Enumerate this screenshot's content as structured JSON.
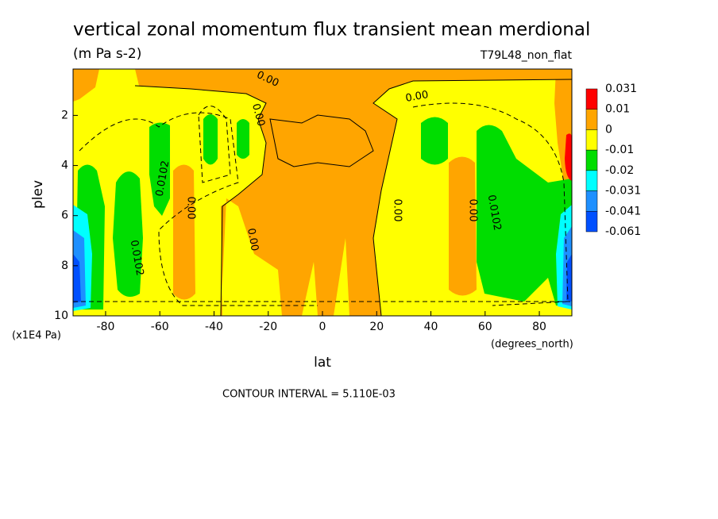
{
  "chart_data": {
    "type": "contour",
    "title": "vertical zonal momentum flux transient mean merdional",
    "subtitle": "(m Pa s-2)",
    "annotation": "T79L48_non_flat",
    "xlabel": "lat",
    "ylabel": "plev",
    "x_units": "(degrees_north)",
    "y_units": "(x1E4 Pa)",
    "contour_interval_note": "CONTOUR INTERVAL = 5.110E-03",
    "xlim": [
      -92,
      92
    ],
    "xticks": [
      -80,
      -60,
      -40,
      -20,
      0,
      20,
      40,
      60,
      80
    ],
    "ylim": [
      10,
      0.15
    ],
    "yticks": [
      2,
      4,
      6,
      8,
      10
    ],
    "contour_labels": [
      "0.00",
      "0.0102"
    ],
    "colorbar": {
      "levels": [
        0.031,
        0.01,
        0,
        -0.01,
        -0.02,
        -0.031,
        -0.041,
        -0.061
      ],
      "colors": [
        "#ff0000",
        "#ffa500",
        "#ffff00",
        "#00dd00",
        "#00ffff",
        "#1e90ff",
        "#0050ff"
      ]
    }
  }
}
